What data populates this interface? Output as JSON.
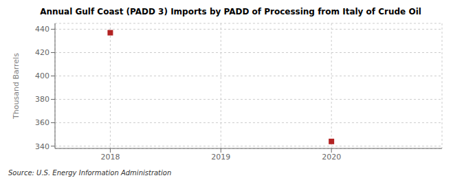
{
  "chart_data": {
    "type": "scatter",
    "title": "Annual Gulf Coast (PADD 3) Imports by PADD of Processing from Italy of Crude Oil",
    "ylabel": "Thousand Barrels",
    "source": "Source: U.S. Energy Information Administration",
    "x": [
      2018,
      2020
    ],
    "values": [
      437,
      344
    ],
    "color": "#b22222",
    "marker": "square",
    "xlim": [
      2017.5,
      2021.0
    ],
    "xticks": [
      2018,
      2019,
      2020
    ],
    "ylim": [
      338,
      445
    ],
    "yticks": [
      340,
      360,
      380,
      400,
      420,
      440
    ],
    "grid": true
  }
}
